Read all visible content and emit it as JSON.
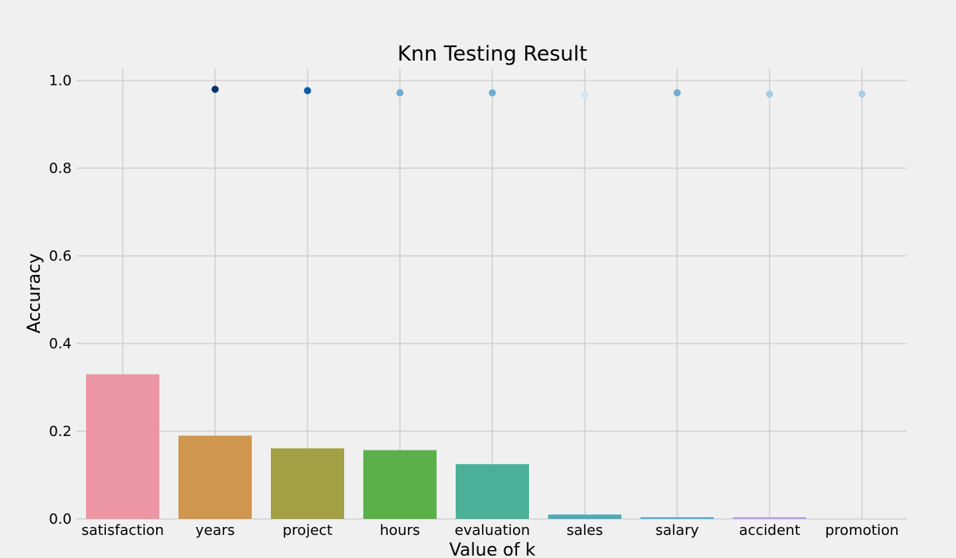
{
  "chart_data": {
    "type": "bar",
    "title": "Knn Testing Result",
    "xlabel": "Value of k",
    "ylabel": "Accuracy",
    "ylim": [
      0,
      1.0
    ],
    "yticks": [
      "0.0",
      "0.2",
      "0.4",
      "0.6",
      "0.8",
      "1.0"
    ],
    "grid": true,
    "background": "#f0f0f0",
    "categories": [
      "satisfaction",
      "years",
      "project",
      "hours",
      "evaluation",
      "sales",
      "salary",
      "accident",
      "promotion"
    ],
    "bars": {
      "values": [
        0.33,
        0.19,
        0.161,
        0.157,
        0.125,
        0.01,
        0.004,
        0.004,
        0.0
      ],
      "colors": [
        "#ec96a3",
        "#ce964f",
        "#a3a046",
        "#5cb04a",
        "#4bb097",
        "#4eabb4",
        "#5aa9d6",
        "#b49ce8",
        "#e797c9"
      ]
    },
    "points": {
      "values": [
        null,
        0.98,
        0.977,
        0.972,
        0.972,
        0.967,
        0.972,
        0.969,
        0.969
      ],
      "colors": [
        "#000000",
        "#08306b",
        "#125ca4",
        "#6aaed6",
        "#6aaed6",
        "#d0e4f5",
        "#6aaed6",
        "#a5cde3",
        "#a5cde3"
      ]
    }
  }
}
